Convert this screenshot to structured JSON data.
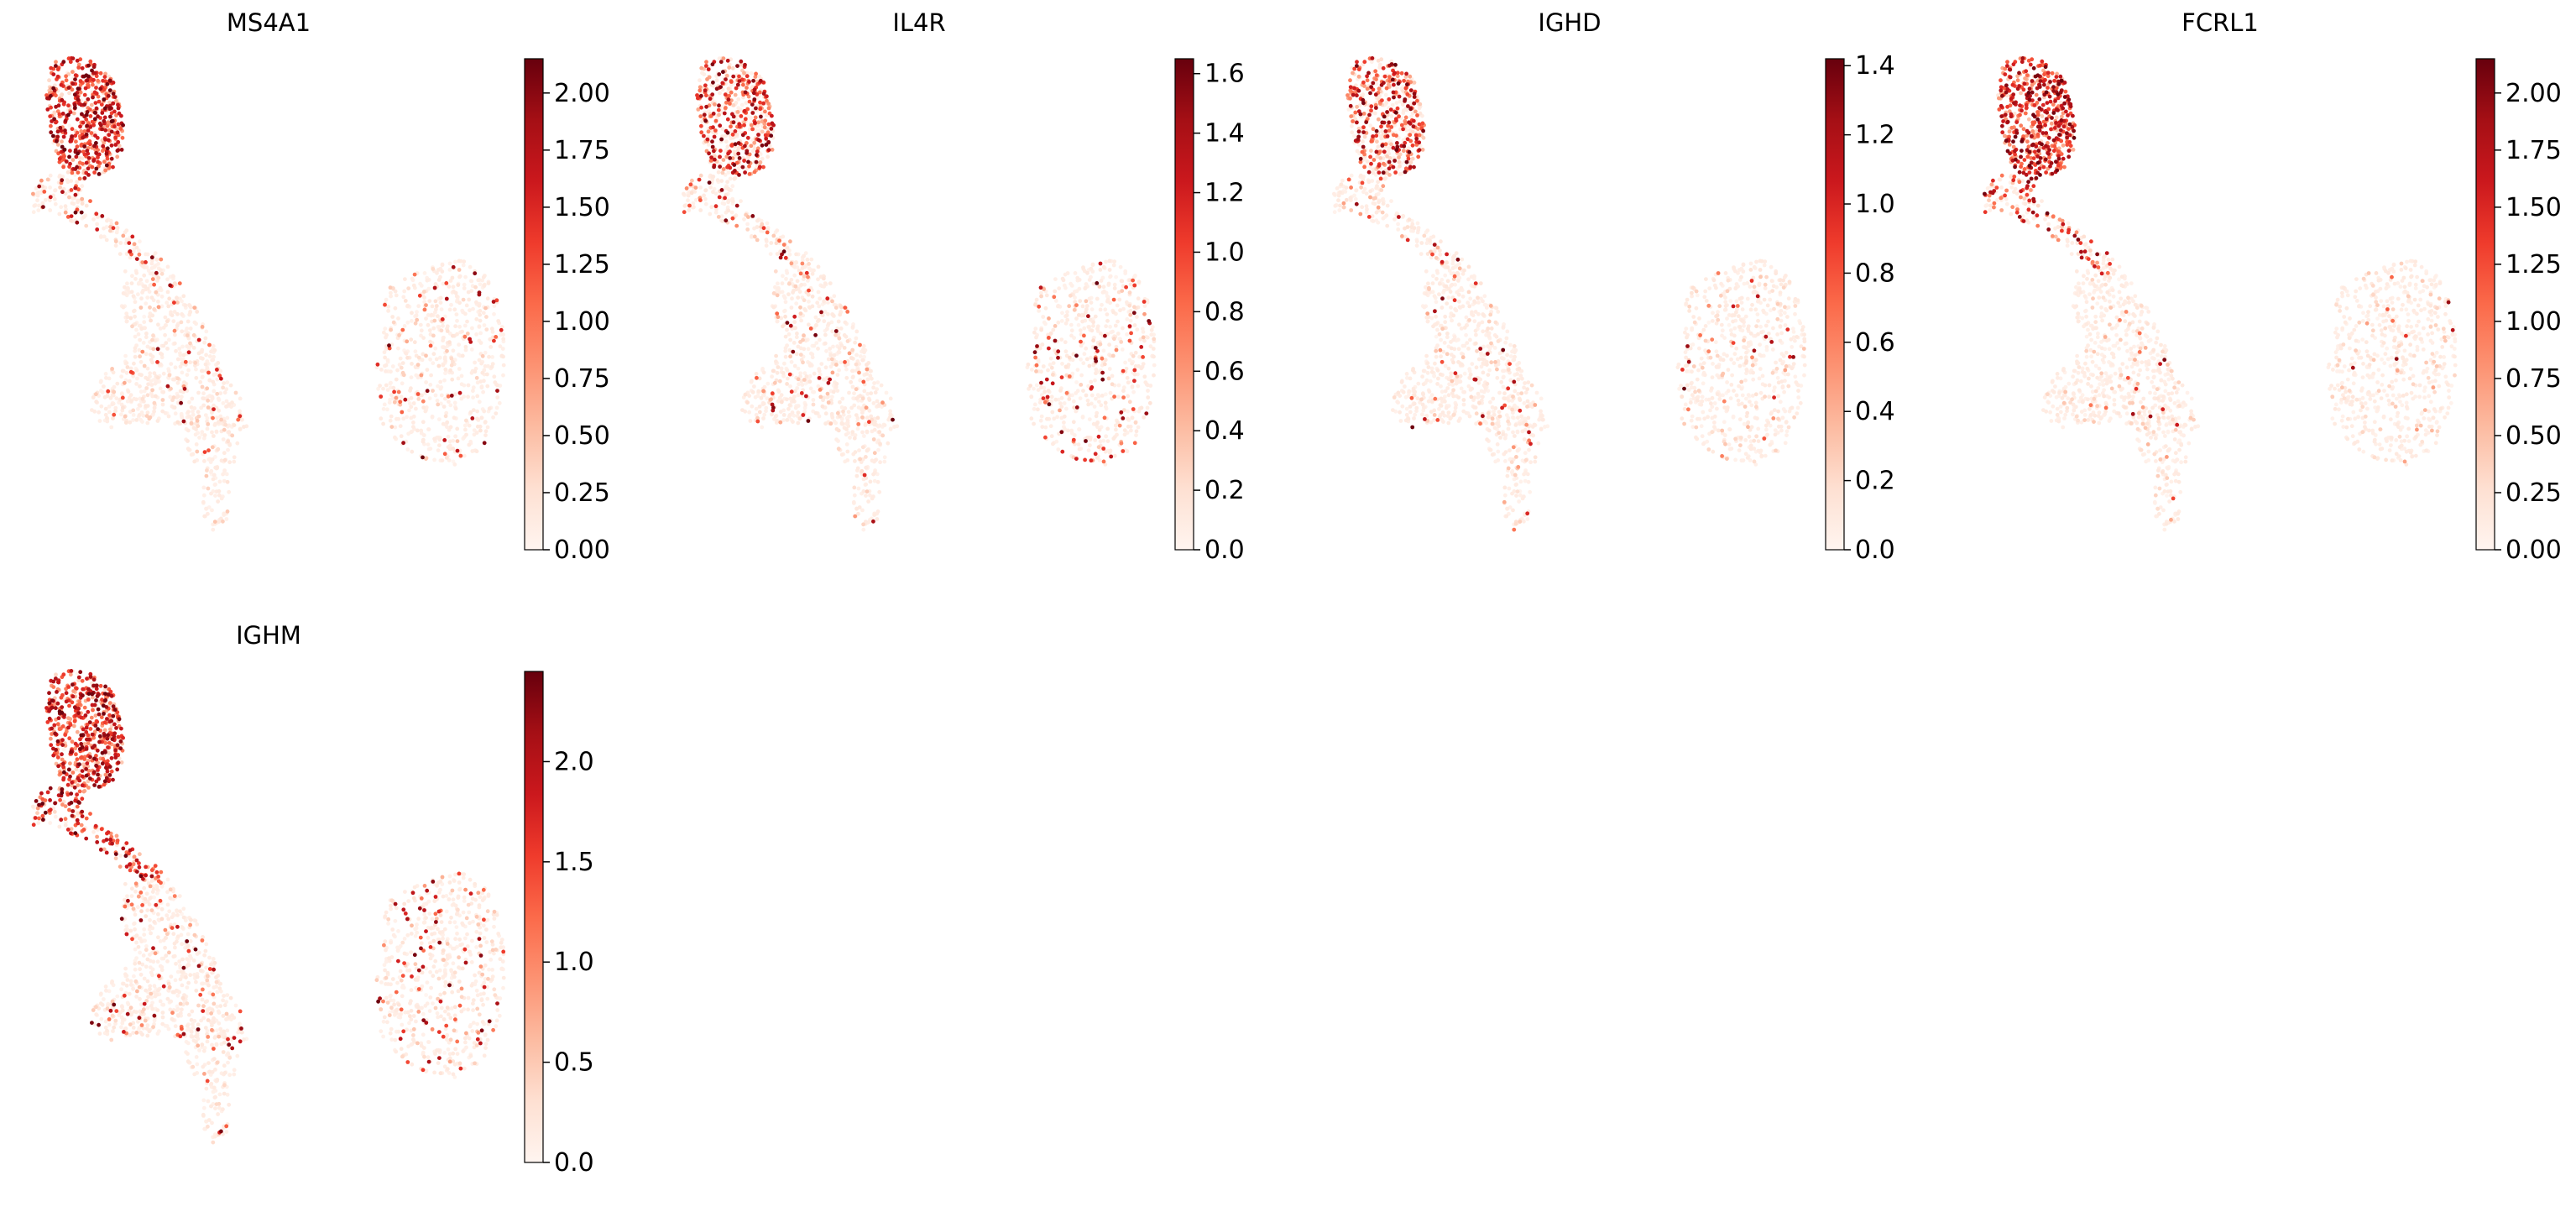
{
  "figure": {
    "cmap": "Reds",
    "colormap_stops": [
      "#fff5f0",
      "#fee0d2",
      "#fcbba1",
      "#fc9272",
      "#fb6a4a",
      "#ef3b2c",
      "#cb181d",
      "#a50f15",
      "#67000d"
    ]
  },
  "chart_data": [
    {
      "type": "scatter",
      "title": "MS4A1",
      "colorbar": {
        "min": 0.0,
        "max": 2.15,
        "ticks": [
          0.0,
          0.25,
          0.5,
          0.75,
          1.0,
          1.25,
          1.5,
          1.75,
          2.0
        ],
        "tick_labels": [
          "0.00",
          "0.25",
          "0.50",
          "0.75",
          "1.00",
          "1.25",
          "1.50",
          "1.75",
          "2.00"
        ]
      },
      "expression_profile": {
        "top_cluster": 0.85,
        "upper_arm": 0.22,
        "mid_body": 0.05,
        "tail": 0.04,
        "right_cluster": 0.07
      }
    },
    {
      "type": "scatter",
      "title": "IL4R",
      "colorbar": {
        "min": 0.0,
        "max": 1.65,
        "ticks": [
          0.0,
          0.2,
          0.4,
          0.6,
          0.8,
          1.0,
          1.2,
          1.4,
          1.6
        ],
        "tick_labels": [
          "0.0",
          "0.2",
          "0.4",
          "0.6",
          "0.8",
          "1.0",
          "1.2",
          "1.4",
          "1.6"
        ]
      },
      "expression_profile": {
        "top_cluster": 0.55,
        "upper_arm": 0.12,
        "mid_body": 0.06,
        "tail": 0.04,
        "right_cluster": 0.14
      }
    },
    {
      "type": "scatter",
      "title": "IGHD",
      "colorbar": {
        "min": 0.0,
        "max": 1.42,
        "ticks": [
          0.0,
          0.2,
          0.4,
          0.6,
          0.8,
          1.0,
          1.2,
          1.4
        ],
        "tick_labels": [
          "0.0",
          "0.2",
          "0.4",
          "0.6",
          "0.8",
          "1.0",
          "1.2",
          "1.4"
        ]
      },
      "expression_profile": {
        "top_cluster": 0.55,
        "upper_arm": 0.12,
        "mid_body": 0.04,
        "tail": 0.03,
        "right_cluster": 0.05
      }
    },
    {
      "type": "scatter",
      "title": "FCRL1",
      "colorbar": {
        "min": 0.0,
        "max": 2.15,
        "ticks": [
          0.0,
          0.25,
          0.5,
          0.75,
          1.0,
          1.25,
          1.5,
          1.75,
          2.0
        ],
        "tick_labels": [
          "0.00",
          "0.25",
          "0.50",
          "0.75",
          "1.00",
          "1.25",
          "1.50",
          "1.75",
          "2.00"
        ]
      },
      "expression_profile": {
        "top_cluster": 0.92,
        "upper_arm": 0.45,
        "mid_body": 0.03,
        "tail": 0.03,
        "right_cluster": 0.03
      }
    },
    {
      "type": "scatter",
      "title": "IGHM",
      "colorbar": {
        "min": 0.0,
        "max": 2.45,
        "ticks": [
          0.0,
          0.5,
          1.0,
          1.5,
          2.0
        ],
        "tick_labels": [
          "0.0",
          "0.5",
          "1.0",
          "1.5",
          "2.0"
        ]
      },
      "expression_profile": {
        "top_cluster": 0.9,
        "upper_arm": 0.75,
        "mid_body": 0.12,
        "tail": 0.08,
        "right_cluster": 0.14
      }
    }
  ]
}
